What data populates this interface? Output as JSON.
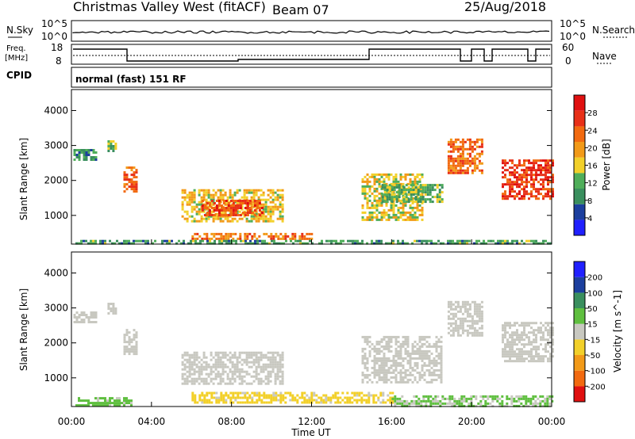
{
  "header": {
    "station": "Christmas Valley West (fitACF)",
    "beam": "Beam 07",
    "date": "25/Aug/2018",
    "mode": "normal (fast) 151 RF"
  },
  "labels": {
    "nsky": "N.Sky",
    "nsearch": "N.Search",
    "freq_line1": "Freq.",
    "freq_line2": "[MHz]",
    "nave": "Nave",
    "cpid": "CPID",
    "nsky_top": "10^5",
    "nsky_bottom": "10^0",
    "nsearch_top": "10^5",
    "nsearch_bottom": "10^0",
    "freq_top": "18",
    "freq_bottom": "8",
    "nave_top": "60",
    "nave_bottom": "0"
  },
  "colors": {
    "power_scale": [
      "#2020ff",
      "#1c3f9e",
      "#3a8f5e",
      "#4fae5a",
      "#f2d02a",
      "#f29a18",
      "#f26a10",
      "#e83018",
      "#e01010"
    ],
    "velocity_scale": [
      "#e01010",
      "#f26a10",
      "#f29a18",
      "#f2d02a",
      "#c8c8c0",
      "#5fbf3f",
      "#3a8f5e",
      "#1c3f9e",
      "#2020ff"
    ]
  },
  "chart_data": [
    {
      "type": "heatmap",
      "title": "Power",
      "xlabel": "Time UT",
      "ylabel": "Slant Range [km]",
      "x_ticks": [
        "00:00",
        "04:00",
        "08:00",
        "12:00",
        "16:00",
        "20:00",
        "00:00"
      ],
      "y_ticks": [
        "1000",
        "2000",
        "3000",
        "4000"
      ],
      "xlim": [
        0,
        24
      ],
      "ylim": [
        180,
        4600
      ],
      "colorbar": {
        "label": "Power [dB]",
        "ticks": [
          "4",
          "8",
          "12",
          "16",
          "20",
          "24",
          "28"
        ],
        "range": [
          0,
          30
        ]
      },
      "regions": [
        {
          "t": [
            0.1,
            1.2
          ],
          "r": [
            2600,
            2900
          ],
          "v": 9
        },
        {
          "t": [
            1.8,
            2.2
          ],
          "r": [
            2850,
            3150
          ],
          "v": 12
        },
        {
          "t": [
            2.6,
            3.3
          ],
          "r": [
            1700,
            2400
          ],
          "v": 22
        },
        {
          "t": [
            5.5,
            10.5
          ],
          "r": [
            800,
            1750
          ],
          "v": 16
        },
        {
          "t": [
            6.5,
            9.5
          ],
          "r": [
            1000,
            1450
          ],
          "v": 24
        },
        {
          "t": [
            14.5,
            17.5
          ],
          "r": [
            900,
            2200
          ],
          "v": 15
        },
        {
          "t": [
            15.5,
            18.5
          ],
          "r": [
            1400,
            1900
          ],
          "v": 11
        },
        {
          "t": [
            18.8,
            20.5
          ],
          "r": [
            2200,
            3200
          ],
          "v": 22
        },
        {
          "t": [
            21.5,
            24.0
          ],
          "r": [
            1500,
            2600
          ],
          "v": 25
        },
        {
          "t": [
            6.0,
            12.0
          ],
          "r": [
            300,
            500
          ],
          "v": 21
        },
        {
          "t": [
            0.2,
            24.0
          ],
          "r": [
            200,
            300
          ],
          "v": 10
        }
      ]
    },
    {
      "type": "heatmap",
      "title": "Velocity",
      "xlabel": "Time UT",
      "ylabel": "Slant Range [km]",
      "x_ticks": [
        "00:00",
        "04:00",
        "08:00",
        "12:00",
        "16:00",
        "20:00",
        "00:00"
      ],
      "y_ticks": [
        "1000",
        "2000",
        "3000",
        "4000"
      ],
      "xlim": [
        0,
        24
      ],
      "ylim": [
        180,
        4600
      ],
      "colorbar": {
        "label": "Velocity [m s^-1]",
        "ticks": [
          "200",
          "100",
          "50",
          "15",
          "-15",
          "-50",
          "-100",
          "-200"
        ],
        "range": [
          -250,
          250
        ]
      },
      "regions": [
        {
          "t": [
            0.1,
            1.2
          ],
          "r": [
            2600,
            2900
          ],
          "v": 0
        },
        {
          "t": [
            1.8,
            2.2
          ],
          "r": [
            2850,
            3150
          ],
          "v": 0
        },
        {
          "t": [
            2.6,
            3.3
          ],
          "r": [
            1700,
            2400
          ],
          "v": 0
        },
        {
          "t": [
            5.5,
            10.5
          ],
          "r": [
            800,
            1750
          ],
          "v": 0
        },
        {
          "t": [
            14.5,
            18.5
          ],
          "r": [
            900,
            2200
          ],
          "v": 0
        },
        {
          "t": [
            18.8,
            20.5
          ],
          "r": [
            2200,
            3200
          ],
          "v": 0
        },
        {
          "t": [
            21.5,
            24.0
          ],
          "r": [
            1500,
            2600
          ],
          "v": 0
        },
        {
          "t": [
            6.0,
            16.0
          ],
          "r": [
            300,
            600
          ],
          "v": -40
        },
        {
          "t": [
            0.2,
            3.0
          ],
          "r": [
            200,
            450
          ],
          "v": 40
        },
        {
          "t": [
            16.0,
            24.0
          ],
          "r": [
            200,
            500
          ],
          "v": 30
        }
      ]
    }
  ]
}
